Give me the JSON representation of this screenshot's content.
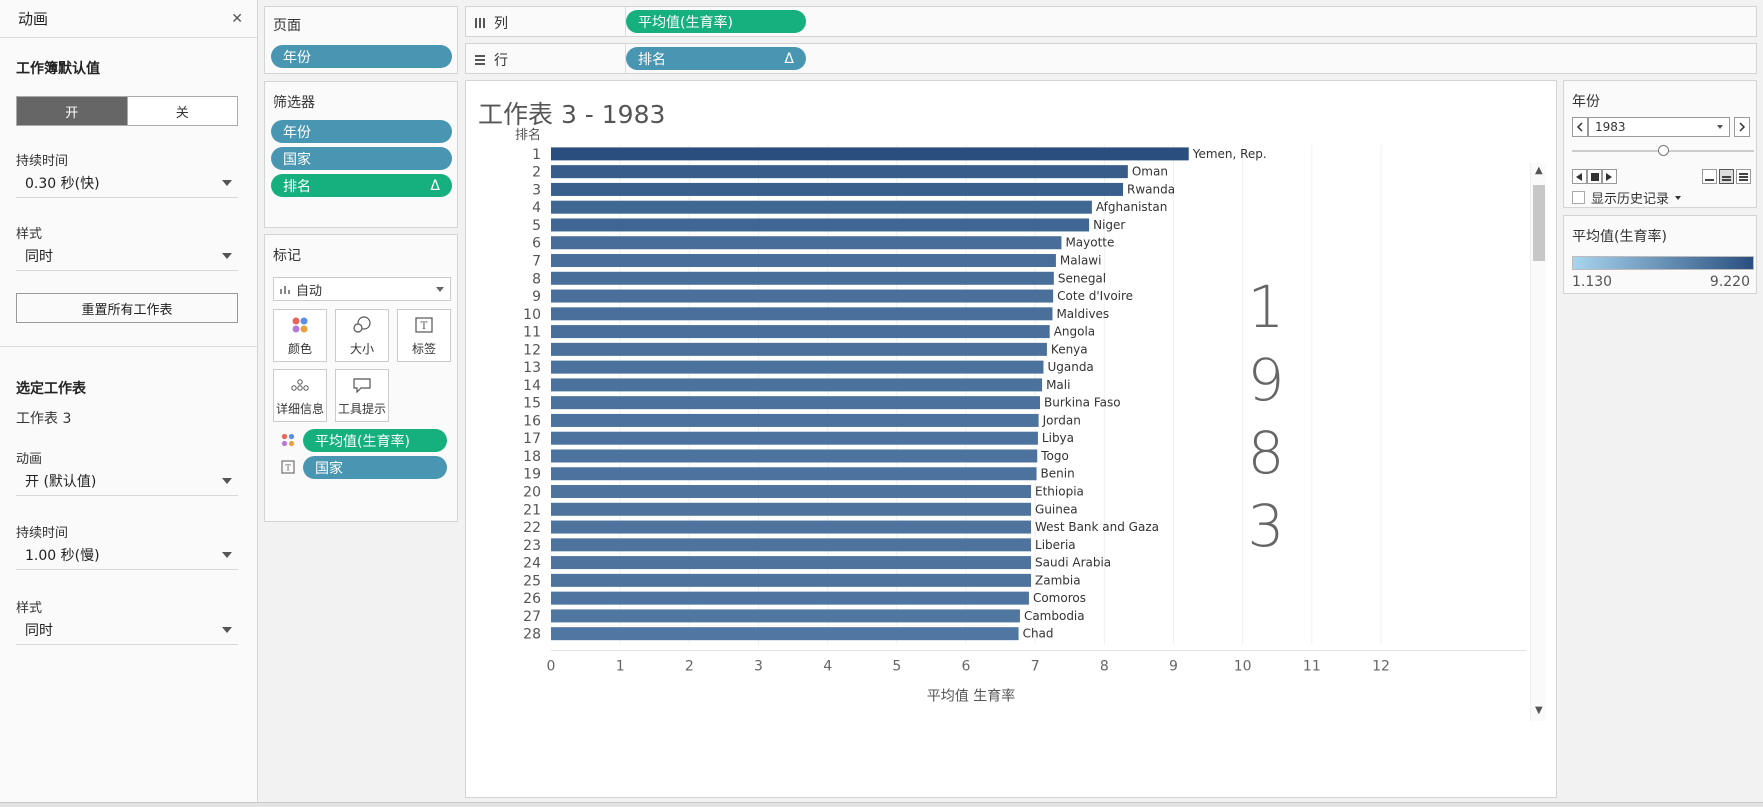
{
  "animation_panel": {
    "title": "动画",
    "workbook_defaults": "工作簿默认值",
    "toggle_on": "开",
    "toggle_off": "关",
    "duration_label": "持续时间",
    "duration_value": "0.30 秒(快)",
    "style_label": "样式",
    "style_value": "同时",
    "reset_button": "重置所有工作表",
    "selected_sheet_title": "选定工作表",
    "selected_sheet_name": "工作表 3",
    "animation_label": "动画",
    "animation_value": "开 (默认值)",
    "sheet_duration_label": "持续时间",
    "sheet_duration_value": "1.00 秒(慢)",
    "sheet_style_label": "样式",
    "sheet_style_value": "同时"
  },
  "pages_card": {
    "title": "页面",
    "pill": "年份"
  },
  "filters_card": {
    "title": "筛选器",
    "pills": [
      "年份",
      "国家",
      "排名"
    ],
    "delta": "Δ"
  },
  "marks_card": {
    "title": "标记",
    "mark_type": "自动",
    "buttons": [
      "颜色",
      "大小",
      "标签",
      "详细信息",
      "工具提示"
    ],
    "fields": [
      "平均值(生育率)",
      "国家"
    ]
  },
  "columns_shelf": {
    "label": "列",
    "pill": "平均值(生育率)"
  },
  "rows_shelf": {
    "label": "行",
    "pill": "排名",
    "delta": "Δ"
  },
  "chart_data": {
    "type": "bar",
    "title": "工作表 3 - 1983",
    "row_header": "排名",
    "xlabel": "平均值 生育率",
    "xlim": [
      0,
      12
    ],
    "x_ticks": [
      "0",
      "1",
      "2",
      "3",
      "4",
      "5",
      "6",
      "7",
      "8",
      "9",
      "10",
      "11",
      "12"
    ],
    "watermark_digits": [
      "1",
      "9",
      "8",
      "3"
    ],
    "ranks": [
      "1",
      "2",
      "3",
      "4",
      "5",
      "6",
      "7",
      "8",
      "9",
      "10",
      "11",
      "12",
      "13",
      "14",
      "15",
      "16",
      "17",
      "18",
      "19",
      "20",
      "21",
      "22",
      "23",
      "24",
      "25",
      "26",
      "27",
      "28"
    ],
    "categories": [
      "Yemen, Rep.",
      "Oman",
      "Rwanda",
      "Afghanistan",
      "Niger",
      "Mayotte",
      "Malawi",
      "Senegal",
      "Cote d'Ivoire",
      "Maldives",
      "Angola",
      "Kenya",
      "Uganda",
      "Mali",
      "Burkina Faso",
      "Jordan",
      "Libya",
      "Togo",
      "Benin",
      "Ethiopia",
      "Guinea",
      "West Bank and Gaza",
      "Liberia",
      "Saudi Arabia",
      "Zambia",
      "Comoros",
      "Cambodia",
      "Chad"
    ],
    "values": [
      9.22,
      8.34,
      8.27,
      7.82,
      7.78,
      7.38,
      7.3,
      7.27,
      7.26,
      7.25,
      7.21,
      7.17,
      7.12,
      7.1,
      7.07,
      7.05,
      7.04,
      7.03,
      7.02,
      6.94,
      6.94,
      6.94,
      6.94,
      6.94,
      6.94,
      6.91,
      6.78,
      6.76
    ],
    "color_min_value": 1.13,
    "color_max_value": 9.22,
    "color_min": "#a8d4ee",
    "color_max": "#2a4f7f"
  },
  "year_filter": {
    "title": "年份",
    "value": "1983",
    "show_history": "显示历史记录"
  },
  "color_legend": {
    "title": "平均值(生育率)",
    "min_label": "1.130",
    "max_label": "9.220"
  }
}
